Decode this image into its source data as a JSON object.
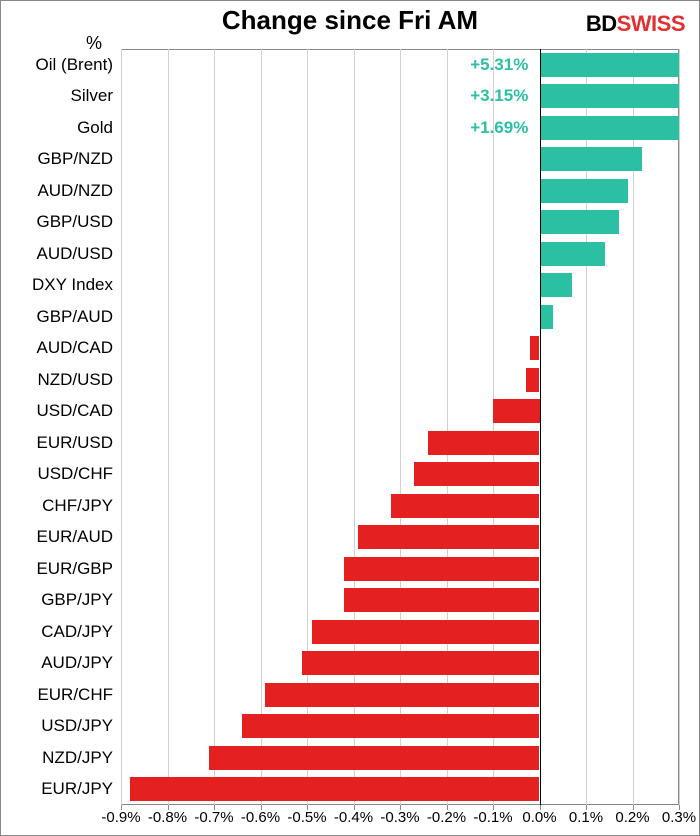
{
  "chart": {
    "type": "bar",
    "orientation": "horizontal",
    "title": "Change since Fri AM",
    "title_fontsize": 26,
    "title_color": "#000000",
    "y_axis_label": "%",
    "y_axis_label_fontsize": 18,
    "background_color": "#ffffff",
    "grid_color": "#d0d0d0",
    "border_color": "#888888",
    "zero_line_color": "#000000",
    "label_fontsize": 17,
    "tick_fontsize": 15,
    "annotation_fontsize": 17,
    "bar_width_ratio": 0.76,
    "xlim": [
      -0.9,
      0.3
    ],
    "x_ticks": [
      -0.9,
      -0.8,
      -0.7,
      -0.6,
      -0.5,
      -0.4,
      -0.3,
      -0.2,
      -0.1,
      0.0,
      0.1,
      0.2,
      0.3
    ],
    "x_tick_labels": [
      "-0.9%",
      "-0.8%",
      "-0.7%",
      "-0.6%",
      "-0.5%",
      "-0.4%",
      "-0.3%",
      "-0.2%",
      "-0.1%",
      "0.0%",
      "0.1%",
      "0.2%",
      "0.3%"
    ],
    "positive_color": "#2bbfa3",
    "negative_color": "#e52020",
    "annotation_color": "#2bbfa3",
    "categories": [
      "Oil (Brent)",
      "Silver",
      "Gold",
      "GBP/NZD",
      "AUD/NZD",
      "GBP/USD",
      "AUD/USD",
      "DXY Index",
      "GBP/AUD",
      "AUD/CAD",
      "NZD/USD",
      "USD/CAD",
      "EUR/USD",
      "USD/CHF",
      "CHF/JPY",
      "EUR/AUD",
      "EUR/GBP",
      "GBP/JPY",
      "CAD/JPY",
      "AUD/JPY",
      "EUR/CHF",
      "USD/JPY",
      "NZD/JPY",
      "EUR/JPY"
    ],
    "values": [
      0.3,
      0.3,
      0.3,
      0.22,
      0.19,
      0.17,
      0.14,
      0.07,
      0.03,
      -0.02,
      -0.03,
      -0.1,
      -0.24,
      -0.27,
      -0.32,
      -0.39,
      -0.42,
      -0.42,
      -0.49,
      -0.51,
      -0.59,
      -0.64,
      -0.71,
      -0.88
    ],
    "annotations": [
      {
        "index": 0,
        "text": "+5.31%"
      },
      {
        "index": 1,
        "text": "+3.15%"
      },
      {
        "index": 2,
        "text": "+1.69%"
      }
    ]
  },
  "brand": {
    "part1": "BD",
    "part2": "SWISS",
    "fontsize": 22
  }
}
